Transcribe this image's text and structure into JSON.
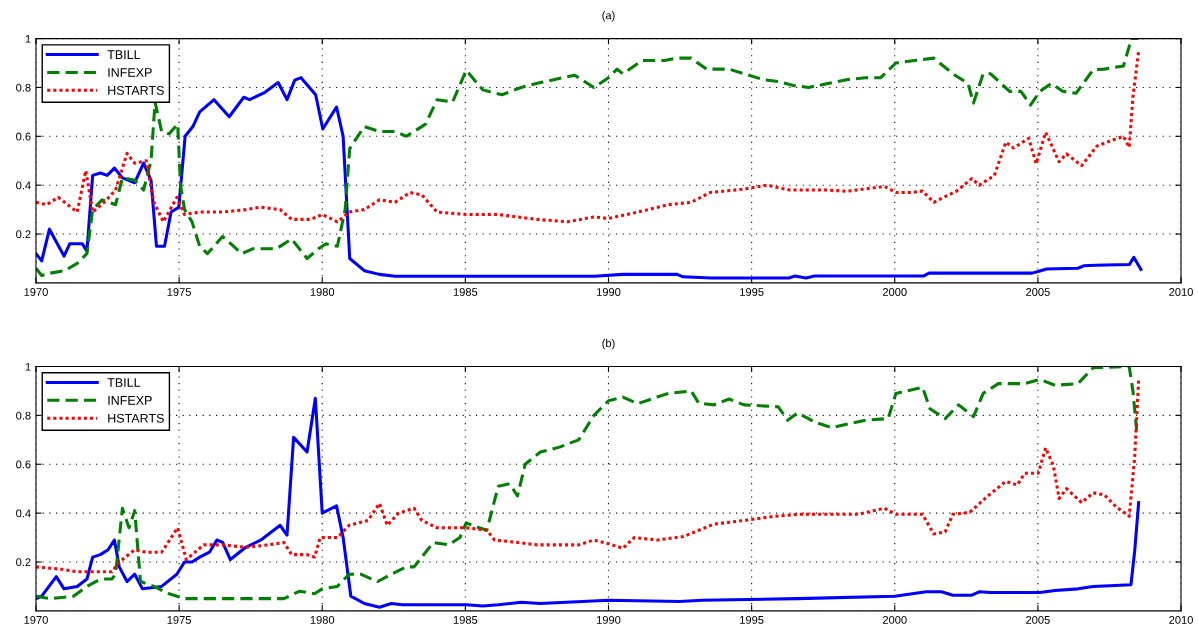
{
  "chart_data": [
    {
      "type": "line",
      "title": "(a)",
      "xlim": [
        1970,
        2010
      ],
      "xticks": [
        1970,
        1975,
        1980,
        1985,
        1990,
        1995,
        2000,
        2005,
        2010
      ],
      "ylim": [
        0,
        1
      ],
      "yticks": [
        0.2,
        0.4,
        0.6,
        0.8,
        1
      ],
      "grid": true,
      "legend": "top left",
      "marker": "none",
      "series": [
        {
          "name": "TBILL",
          "color": "#0000ff",
          "line_style": "solid",
          "x": [
            1970.0,
            1970.2,
            1970.47,
            1970.98,
            1971.18,
            1971.62,
            1971.78,
            1971.98,
            1972.25,
            1972.49,
            1972.74,
            1973.02,
            1973.45,
            1973.76,
            1974.02,
            1974.21,
            1974.49,
            1974.72,
            1974.99,
            1975.21,
            1975.48,
            1975.72,
            1976.22,
            1976.75,
            1977.26,
            1977.46,
            1978.0,
            1978.46,
            1978.77,
            1979.04,
            1979.26,
            1979.77,
            1980.02,
            1980.5,
            1980.73,
            1980.96,
            1981.47,
            1982.0,
            1982.54,
            1989.5,
            1990.5,
            1992.4,
            1992.6,
            1993.6,
            1996.3,
            1996.5,
            1996.9,
            1997.2,
            2001.0,
            2001.2,
            2004.8,
            2005.1,
            2005.3,
            2006.4,
            2006.6,
            2007.0,
            2008.2,
            2008.35,
            2008.6
          ],
          "values": [
            0.12,
            0.09,
            0.22,
            0.11,
            0.16,
            0.16,
            0.13,
            0.44,
            0.45,
            0.44,
            0.47,
            0.43,
            0.41,
            0.49,
            0.42,
            0.15,
            0.15,
            0.29,
            0.31,
            0.6,
            0.64,
            0.7,
            0.75,
            0.68,
            0.76,
            0.75,
            0.78,
            0.82,
            0.75,
            0.83,
            0.84,
            0.77,
            0.63,
            0.72,
            0.6,
            0.1,
            0.05,
            0.035,
            0.027,
            0.027,
            0.035,
            0.035,
            0.025,
            0.02,
            0.02,
            0.028,
            0.02,
            0.028,
            0.028,
            0.04,
            0.04,
            0.05,
            0.057,
            0.06,
            0.07,
            0.072,
            0.075,
            0.105,
            0.055
          ]
        },
        {
          "name": "INFEXP",
          "color": "#008000",
          "line_style": "dashed",
          "x": [
            1970.0,
            1970.2,
            1970.5,
            1971.0,
            1971.44,
            1971.78,
            1971.98,
            1972.31,
            1972.78,
            1973.02,
            1973.45,
            1973.76,
            1974.02,
            1974.16,
            1974.39,
            1974.65,
            1974.95,
            1975.05,
            1975.19,
            1975.45,
            1975.72,
            1975.99,
            1976.52,
            1977.19,
            1977.59,
            1978.13,
            1978.4,
            1978.93,
            1979.47,
            1979.87,
            1980.13,
            1980.53,
            1980.8,
            1980.96,
            1981.47,
            1982.0,
            1982.54,
            1982.94,
            1983.61,
            1984.01,
            1984.55,
            1985.03,
            1985.61,
            1986.28,
            1986.95,
            1987.62,
            1988.42,
            1988.82,
            1989.49,
            1990.0,
            1990.3,
            1990.5,
            1991.17,
            1991.96,
            1992.36,
            1992.89,
            1993.42,
            1994.21,
            1994.74,
            1995.4,
            1995.93,
            1996.46,
            1996.99,
            1997.66,
            1998.32,
            1998.98,
            1999.51,
            2000.04,
            2000.7,
            2001.36,
            2002.03,
            2002.56,
            2002.75,
            2003.09,
            2003.35,
            2004.01,
            2004.41,
            2004.74,
            2005.07,
            2005.47,
            2005.87,
            2006.33,
            2006.93,
            2007.32,
            2007.99,
            2008.19,
            2008.25,
            2008.52
          ],
          "values": [
            0.06,
            0.03,
            0.04,
            0.05,
            0.08,
            0.12,
            0.3,
            0.34,
            0.32,
            0.43,
            0.42,
            0.38,
            0.5,
            0.74,
            0.62,
            0.61,
            0.65,
            0.4,
            0.3,
            0.25,
            0.15,
            0.12,
            0.19,
            0.12,
            0.14,
            0.14,
            0.14,
            0.18,
            0.1,
            0.14,
            0.16,
            0.15,
            0.3,
            0.55,
            0.64,
            0.62,
            0.62,
            0.6,
            0.65,
            0.75,
            0.74,
            0.87,
            0.79,
            0.77,
            0.8,
            0.82,
            0.84,
            0.85,
            0.8,
            0.84,
            0.875,
            0.856,
            0.91,
            0.91,
            0.92,
            0.92,
            0.875,
            0.875,
            0.856,
            0.832,
            0.824,
            0.808,
            0.8,
            0.816,
            0.832,
            0.84,
            0.84,
            0.9,
            0.91,
            0.92,
            0.856,
            0.816,
            0.736,
            0.856,
            0.856,
            0.784,
            0.784,
            0.728,
            0.784,
            0.816,
            0.784,
            0.776,
            0.872,
            0.875,
            0.888,
            0.968,
            1.0,
            1.0
          ]
        },
        {
          "name": "HSTARTS",
          "color": "#ff0000",
          "line_style": "dotted",
          "x": [
            1970.0,
            1970.37,
            1970.78,
            1971.44,
            1971.74,
            1971.98,
            1972.38,
            1972.78,
            1973.18,
            1973.45,
            1973.85,
            1974.12,
            1974.45,
            1974.92,
            1975.19,
            1975.72,
            1976.52,
            1977.33,
            1977.86,
            1978.53,
            1978.93,
            1979.6,
            1980.0,
            1980.53,
            1980.94,
            1981.47,
            1982.0,
            1982.54,
            1983.07,
            1983.48,
            1984.01,
            1985.03,
            1986.15,
            1987.49,
            1988.56,
            1989.49,
            1990.0,
            1991.03,
            1992.09,
            1992.89,
            1993.55,
            1994.74,
            1995.54,
            1996.33,
            1997.66,
            1998.32,
            1999.64,
            2000.04,
            2000.57,
            2000.97,
            2001.36,
            2002.16,
            2002.69,
            2002.95,
            2003.48,
            2003.88,
            2004.15,
            2004.68,
            2004.94,
            2005.27,
            2005.74,
            2006.0,
            2006.53,
            2007.06,
            2007.59,
            2007.99,
            2008.19,
            2008.32,
            2008.52
          ],
          "values": [
            0.33,
            0.32,
            0.35,
            0.29,
            0.46,
            0.29,
            0.33,
            0.38,
            0.53,
            0.49,
            0.5,
            0.33,
            0.25,
            0.35,
            0.28,
            0.29,
            0.29,
            0.3,
            0.31,
            0.3,
            0.26,
            0.26,
            0.28,
            0.25,
            0.29,
            0.3,
            0.34,
            0.33,
            0.37,
            0.36,
            0.29,
            0.28,
            0.28,
            0.26,
            0.25,
            0.27,
            0.264,
            0.29,
            0.32,
            0.33,
            0.37,
            0.384,
            0.4,
            0.38,
            0.38,
            0.375,
            0.395,
            0.37,
            0.37,
            0.376,
            0.33,
            0.376,
            0.427,
            0.4,
            0.44,
            0.576,
            0.552,
            0.592,
            0.488,
            0.616,
            0.496,
            0.528,
            0.48,
            0.56,
            0.584,
            0.6,
            0.555,
            0.76,
            0.95
          ]
        }
      ]
    },
    {
      "type": "line",
      "title": "(b)",
      "xlim": [
        1970,
        2010
      ],
      "xticks": [
        1970,
        1975,
        1980,
        1985,
        1990,
        1995,
        2000,
        2005,
        2010
      ],
      "ylim": [
        0,
        1
      ],
      "yticks": [
        0.2,
        0.4,
        0.6,
        0.8,
        1
      ],
      "grid": true,
      "legend": "top left",
      "marker": "none",
      "series": [
        {
          "name": "TBILL",
          "color": "#0000ff",
          "line_style": "solid",
          "x": [
            1970.0,
            1970.2,
            1970.71,
            1970.98,
            1971.44,
            1971.78,
            1971.98,
            1972.25,
            1972.52,
            1972.74,
            1972.91,
            1973.18,
            1973.45,
            1973.72,
            1974.39,
            1974.92,
            1975.19,
            1975.45,
            1975.72,
            1976.06,
            1976.32,
            1976.52,
            1976.79,
            1977.33,
            1977.86,
            1978.53,
            1978.77,
            1979.0,
            1979.47,
            1979.76,
            1980.0,
            1980.5,
            1980.73,
            1981.0,
            1981.47,
            1982.0,
            1982.41,
            1982.81,
            1985.03,
            1985.61,
            1986.15,
            1986.95,
            1987.62,
            1990.0,
            1992.49,
            1993.28,
            1996.6,
            2000.0,
            2001.1,
            2001.63,
            2002.03,
            2002.69,
            2002.95,
            2003.35,
            2005.07,
            2005.6,
            2006.4,
            2006.93,
            2008.25,
            2008.38,
            2008.52
          ],
          "values": [
            0.05,
            0.06,
            0.14,
            0.09,
            0.1,
            0.13,
            0.22,
            0.23,
            0.25,
            0.29,
            0.18,
            0.12,
            0.15,
            0.09,
            0.1,
            0.15,
            0.2,
            0.2,
            0.22,
            0.24,
            0.29,
            0.28,
            0.21,
            0.26,
            0.29,
            0.35,
            0.31,
            0.71,
            0.65,
            0.87,
            0.4,
            0.43,
            0.3,
            0.06,
            0.03,
            0.015,
            0.03,
            0.025,
            0.025,
            0.02,
            0.025,
            0.035,
            0.03,
            0.043,
            0.038,
            0.043,
            0.05,
            0.06,
            0.078,
            0.078,
            0.064,
            0.064,
            0.078,
            0.075,
            0.075,
            0.083,
            0.09,
            0.1,
            0.107,
            0.243,
            0.443
          ]
        },
        {
          "name": "INFEXP",
          "color": "#008000",
          "line_style": "dashed",
          "x": [
            1970.0,
            1970.51,
            1971.31,
            1971.78,
            1972.25,
            1972.65,
            1972.78,
            1973.02,
            1973.25,
            1973.45,
            1973.65,
            1974.12,
            1974.65,
            1975.19,
            1976.26,
            1977.46,
            1978.66,
            1979.2,
            1979.73,
            1980.0,
            1980.53,
            1980.94,
            1981.34,
            1981.94,
            1982.41,
            1982.94,
            1983.21,
            1983.88,
            1984.41,
            1984.81,
            1985.03,
            1985.48,
            1985.75,
            1986.15,
            1986.55,
            1986.82,
            1987.09,
            1987.62,
            1988.29,
            1988.96,
            1989.49,
            1990.0,
            1990.5,
            1991.03,
            1991.7,
            1992.09,
            1992.89,
            1993.15,
            1993.68,
            1994.21,
            1994.74,
            1995.93,
            1996.26,
            1996.6,
            1997.26,
            1997.79,
            1998.98,
            1999.77,
            2000.04,
            2000.97,
            2001.23,
            2001.76,
            2002.23,
            2002.75,
            2003.09,
            2003.62,
            2004.54,
            2005.07,
            2005.6,
            2006.4,
            2006.93,
            2008.19,
            2008.32,
            2008.45
          ],
          "values": [
            0.06,
            0.05,
            0.06,
            0.1,
            0.13,
            0.13,
            0.15,
            0.42,
            0.34,
            0.41,
            0.12,
            0.1,
            0.07,
            0.05,
            0.05,
            0.05,
            0.05,
            0.08,
            0.07,
            0.09,
            0.1,
            0.15,
            0.15,
            0.12,
            0.15,
            0.18,
            0.18,
            0.28,
            0.27,
            0.3,
            0.36,
            0.34,
            0.33,
            0.51,
            0.52,
            0.47,
            0.6,
            0.65,
            0.67,
            0.7,
            0.8,
            0.86,
            0.875,
            0.848,
            0.875,
            0.89,
            0.9,
            0.85,
            0.843,
            0.867,
            0.843,
            0.835,
            0.78,
            0.81,
            0.77,
            0.75,
            0.78,
            0.787,
            0.89,
            0.915,
            0.827,
            0.787,
            0.843,
            0.795,
            0.89,
            0.93,
            0.93,
            0.947,
            0.923,
            0.93,
            0.995,
            1.0,
            0.9,
            0.74
          ]
        },
        {
          "name": "HSTARTS",
          "color": "#ff0000",
          "line_style": "dotted",
          "x": [
            1970.0,
            1970.91,
            1971.44,
            1972.25,
            1972.65,
            1972.91,
            1973.45,
            1973.85,
            1974.39,
            1974.95,
            1975.25,
            1975.86,
            1976.52,
            1977.33,
            1978.13,
            1978.66,
            1978.93,
            1979.47,
            1979.73,
            1979.93,
            1980.53,
            1980.94,
            1981.6,
            1982.0,
            1982.27,
            1982.67,
            1983.21,
            1983.48,
            1984.01,
            1985.03,
            1985.75,
            1986.02,
            1986.82,
            1987.49,
            1988.16,
            1988.96,
            1989.49,
            1990.0,
            1990.5,
            1990.9,
            1991.7,
            1992.62,
            1993.68,
            1994.74,
            1995.8,
            1996.6,
            1998.72,
            1999.64,
            2000.04,
            2000.97,
            2001.36,
            2001.76,
            2002.03,
            2002.62,
            2003.22,
            2003.88,
            2004.28,
            2004.54,
            2005.01,
            2005.27,
            2005.54,
            2005.74,
            2006.0,
            2006.53,
            2006.93,
            2007.32,
            2007.72,
            2008.19,
            2008.38,
            2008.52
          ],
          "values": [
            0.18,
            0.17,
            0.16,
            0.16,
            0.16,
            0.2,
            0.25,
            0.24,
            0.24,
            0.34,
            0.21,
            0.27,
            0.27,
            0.26,
            0.27,
            0.28,
            0.23,
            0.23,
            0.22,
            0.3,
            0.3,
            0.35,
            0.37,
            0.44,
            0.35,
            0.4,
            0.42,
            0.37,
            0.34,
            0.34,
            0.33,
            0.29,
            0.28,
            0.27,
            0.27,
            0.27,
            0.29,
            0.275,
            0.256,
            0.3,
            0.29,
            0.304,
            0.355,
            0.37,
            0.387,
            0.395,
            0.395,
            0.42,
            0.395,
            0.395,
            0.315,
            0.323,
            0.395,
            0.403,
            0.467,
            0.53,
            0.515,
            0.563,
            0.563,
            0.667,
            0.595,
            0.46,
            0.5,
            0.443,
            0.483,
            0.475,
            0.427,
            0.387,
            0.627,
            0.947
          ]
        }
      ]
    }
  ]
}
